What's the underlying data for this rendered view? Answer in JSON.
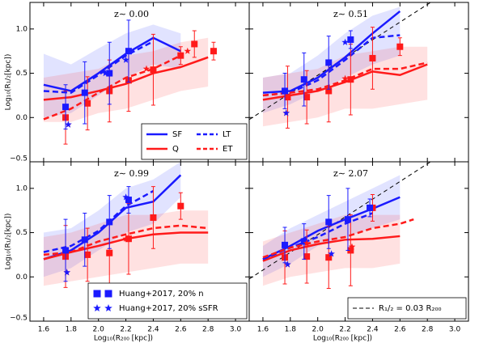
{
  "chart_data": [
    {
      "type": "line",
      "title": "z∼ 0.00",
      "xlim": [
        1.5,
        3.1
      ],
      "ylim": [
        -0.5,
        1.3
      ],
      "yticks": [
        {
          "value": -0.5,
          "label": "−0.5"
        },
        {
          "value": 0,
          "label": "0.0"
        },
        0.5,
        {
          "value": 1,
          "label": "1.0"
        }
      ],
      "ylabel": "Log₁₀(R₁/₂[kpc])",
      "legend": "lower right",
      "legend_columns": 2,
      "series": [
        {
          "kind": "band",
          "color": "#3344ff",
          "x": [
            1.6,
            1.8,
            2.0,
            2.2,
            2.4,
            2.6
          ],
          "lower": [
            0.0,
            0.05,
            0.25,
            0.45,
            0.6,
            0.55
          ],
          "upper": [
            0.72,
            0.6,
            0.78,
            0.95,
            1.05,
            0.95
          ]
        },
        {
          "kind": "band",
          "color": "#ff3333",
          "x": [
            1.6,
            1.8,
            2.0,
            2.2,
            2.4,
            2.6,
            2.8
          ],
          "lower": [
            -0.05,
            -0.05,
            0.05,
            0.1,
            0.2,
            0.3,
            0.35
          ],
          "upper": [
            0.45,
            0.5,
            0.55,
            0.7,
            0.75,
            0.85,
            0.9
          ]
        },
        {
          "name": "SF",
          "kind": "line",
          "color": "#1a1aff",
          "x": [
            1.6,
            1.8,
            2.0,
            2.2,
            2.4,
            2.6
          ],
          "values": [
            0.37,
            0.3,
            0.5,
            0.72,
            0.9,
            0.75
          ]
        },
        {
          "name": "Q",
          "kind": "line",
          "color": "#ff1a1a",
          "x": [
            1.6,
            1.8,
            2.0,
            2.2,
            2.4,
            2.6,
            2.8
          ],
          "values": [
            0.2,
            0.23,
            0.3,
            0.38,
            0.5,
            0.57,
            0.68
          ]
        },
        {
          "name": "LT",
          "kind": "dashed",
          "color": "#1a1aff",
          "x": [
            1.6,
            1.8,
            2.0,
            2.2,
            2.4
          ],
          "values": [
            0.3,
            0.28,
            0.48,
            0.7,
            0.86
          ]
        },
        {
          "name": "ET",
          "kind": "dashed",
          "color": "#ff1a1a",
          "x": [
            1.6,
            1.8,
            2.0,
            2.2,
            2.4,
            2.6
          ],
          "values": [
            -0.02,
            0.1,
            0.28,
            0.45,
            0.55,
            0.7
          ]
        },
        {
          "kind": "squares",
          "color": "#ff1a1a",
          "x": [
            1.76,
            1.92,
            2.08,
            2.22,
            2.4,
            2.6,
            2.7,
            2.84
          ],
          "values": [
            0.0,
            0.16,
            0.3,
            0.42,
            0.54,
            0.7,
            0.83,
            0.75
          ],
          "errors": [
            0.3,
            0.3,
            0.35,
            0.35,
            0.4,
            0.1,
            0.15,
            0.1
          ]
        },
        {
          "kind": "squares",
          "color": "#1a1aff",
          "x": [
            1.76,
            1.9,
            2.08,
            2.22
          ],
          "values": [
            0.12,
            0.28,
            0.5,
            0.75
          ],
          "errors": [
            0.25,
            0.35,
            0.35,
            0.35
          ]
        },
        {
          "kind": "stars",
          "color": "#ff1a1a",
          "x": [
            1.78,
            2.35,
            2.65
          ],
          "values": [
            -0.08,
            0.55,
            0.75
          ]
        },
        {
          "kind": "stars",
          "color": "#1a1aff",
          "x": [
            1.78,
            2.05,
            2.2
          ],
          "values": [
            -0.08,
            0.5,
            0.65
          ]
        }
      ]
    },
    {
      "type": "line",
      "title": "z∼ 0.51",
      "xlim": [
        1.5,
        3.1
      ],
      "ylim": [
        -0.5,
        1.3
      ],
      "series": [
        {
          "kind": "band",
          "color": "#3344ff",
          "x": [
            1.6,
            1.8,
            2.0,
            2.2,
            2.4,
            2.6
          ],
          "lower": [
            0.05,
            0.15,
            0.3,
            0.45,
            0.6,
            0.7
          ],
          "upper": [
            0.45,
            0.5,
            0.7,
            0.95,
            1.15,
            1.25
          ]
        },
        {
          "kind": "band",
          "color": "#ff3333",
          "x": [
            1.6,
            1.8,
            2.0,
            2.2,
            2.4,
            2.6,
            2.8
          ],
          "lower": [
            -0.1,
            -0.05,
            0.0,
            0.1,
            0.1,
            0.15,
            0.2
          ],
          "upper": [
            0.45,
            0.5,
            0.55,
            0.7,
            0.75,
            0.8,
            0.8
          ]
        },
        {
          "kind": "dashed",
          "color": "#000000",
          "x": [
            1.5,
            3.1
          ],
          "values": [
            -0.023,
            1.577
          ]
        },
        {
          "kind": "line",
          "color": "#1a1aff",
          "x": [
            1.6,
            1.8,
            2.0,
            2.2,
            2.4,
            2.6
          ],
          "values": [
            0.28,
            0.3,
            0.45,
            0.68,
            0.95,
            1.2
          ]
        },
        {
          "kind": "line",
          "color": "#ff1a1a",
          "x": [
            1.6,
            1.8,
            2.0,
            2.2,
            2.4,
            2.6,
            2.8
          ],
          "values": [
            0.2,
            0.25,
            0.3,
            0.4,
            0.52,
            0.48,
            0.6
          ]
        },
        {
          "kind": "dashed",
          "color": "#1a1aff",
          "x": [
            1.6,
            1.8,
            2.0,
            2.2,
            2.4,
            2.6
          ],
          "values": [
            0.25,
            0.28,
            0.42,
            0.65,
            0.9,
            0.93
          ]
        },
        {
          "kind": "dashed",
          "color": "#ff1a1a",
          "x": [
            1.6,
            1.8,
            2.0,
            2.2,
            2.4,
            2.6,
            2.8
          ],
          "values": [
            0.25,
            0.28,
            0.32,
            0.42,
            0.55,
            0.55,
            0.62
          ]
        },
        {
          "kind": "squares",
          "color": "#ff1a1a",
          "x": [
            1.78,
            1.92,
            2.08,
            2.24,
            2.4,
            2.6
          ],
          "values": [
            0.23,
            0.23,
            0.3,
            0.43,
            0.67,
            0.8
          ],
          "errors": [
            0.35,
            0.3,
            0.35,
            0.4,
            0.35,
            0.1
          ]
        },
        {
          "kind": "squares",
          "color": "#1a1aff",
          "x": [
            1.76,
            1.9,
            2.08,
            2.24
          ],
          "values": [
            0.3,
            0.43,
            0.62,
            0.88
          ],
          "errors": [
            0.2,
            0.3,
            0.3,
            0.1
          ]
        },
        {
          "kind": "stars",
          "color": "#ff1a1a",
          "x": [
            1.77,
            2.2
          ],
          "values": [
            0.05,
            0.44
          ]
        },
        {
          "kind": "stars",
          "color": "#1a1aff",
          "x": [
            1.77,
            2.2
          ],
          "values": [
            0.05,
            0.85
          ]
        }
      ]
    },
    {
      "type": "line",
      "title": "z∼ 0.99",
      "xlim": [
        1.5,
        3.1
      ],
      "ylim": [
        -0.5,
        1.3
      ],
      "xticks": [
        1.6,
        1.8,
        {
          "value": 2,
          "label": "2.0"
        },
        2.2,
        2.4,
        2.6,
        2.8,
        {
          "value": 3,
          "label": "3.0"
        }
      ],
      "yticks": [
        {
          "value": -0.5,
          "label": "−0.5"
        },
        {
          "value": 0,
          "label": "0.0"
        },
        0.5,
        {
          "value": 1,
          "label": "1.0"
        }
      ],
      "xlabel": "Log₁₀(R₂₀₀ [kpc])",
      "ylabel": "Log₁₀(R₁/₂[kpc])",
      "legend": "lower right",
      "legend_columns": 1,
      "series": [
        {
          "kind": "band",
          "color": "#3344ff",
          "x": [
            1.6,
            1.8,
            2.0,
            2.2,
            2.4,
            2.6
          ],
          "lower": [
            0.0,
            0.1,
            0.3,
            0.5,
            0.6,
            0.9
          ],
          "upper": [
            0.5,
            0.55,
            0.75,
            1.0,
            1.1,
            1.3
          ]
        },
        {
          "kind": "band",
          "color": "#ff3333",
          "x": [
            1.6,
            1.8,
            2.0,
            2.2,
            2.4,
            2.6,
            2.8
          ],
          "lower": [
            -0.1,
            -0.05,
            0.0,
            0.05,
            0.1,
            0.15,
            0.15
          ],
          "upper": [
            0.45,
            0.5,
            0.6,
            0.7,
            0.7,
            0.75,
            0.75
          ]
        },
        {
          "kind": "line",
          "color": "#1a1aff",
          "x": [
            1.6,
            1.8,
            2.0,
            2.2,
            2.4,
            2.6
          ],
          "values": [
            0.2,
            0.3,
            0.5,
            0.78,
            0.85,
            1.15
          ]
        },
        {
          "kind": "line",
          "color": "#ff1a1a",
          "x": [
            1.6,
            1.8,
            2.0,
            2.2,
            2.4,
            2.6,
            2.8
          ],
          "values": [
            0.2,
            0.28,
            0.35,
            0.43,
            0.48,
            0.5,
            0.5
          ]
        },
        {
          "kind": "dashed",
          "color": "#1a1aff",
          "x": [
            1.6,
            1.8,
            2.0,
            2.2,
            2.4
          ],
          "values": [
            0.28,
            0.35,
            0.52,
            0.8,
            0.97
          ]
        },
        {
          "kind": "dashed",
          "color": "#ff1a1a",
          "x": [
            1.6,
            1.8,
            2.0,
            2.2,
            2.4,
            2.6,
            2.8
          ],
          "values": [
            0.25,
            0.28,
            0.4,
            0.48,
            0.55,
            0.58,
            0.55
          ]
        },
        {
          "kind": "squares",
          "color": "#ff1a1a",
          "x": [
            1.76,
            1.92,
            2.08,
            2.22,
            2.4,
            2.6
          ],
          "values": [
            0.23,
            0.25,
            0.27,
            0.43,
            0.67,
            0.8
          ],
          "errors": [
            0.35,
            0.3,
            0.35,
            0.4,
            0.35,
            0.15
          ]
        },
        {
          "name": "Huang+2017, 20% n",
          "kind": "squares",
          "color": "#1a1aff",
          "x": [
            1.76,
            1.9,
            2.08,
            2.22
          ],
          "values": [
            0.3,
            0.42,
            0.62,
            0.87
          ],
          "errors": [
            0.35,
            0.3,
            0.3,
            0.15
          ]
        },
        {
          "kind": "stars",
          "color": "#ff1a1a",
          "x": [
            1.77,
            2.2
          ],
          "values": [
            0.05,
            0.43
          ]
        },
        {
          "name": "Huang+2017, 20% sSFR",
          "kind": "stars",
          "color": "#1a1aff",
          "x": [
            1.77,
            2.2
          ],
          "values": [
            0.05,
            0.9
          ]
        }
      ]
    },
    {
      "type": "line",
      "title": "z∼ 2.07",
      "xlim": [
        1.5,
        3.1
      ],
      "ylim": [
        -0.5,
        1.3
      ],
      "xticks": [
        1.6,
        1.8,
        {
          "value": 2,
          "label": "2.0"
        },
        2.2,
        2.4,
        2.6,
        2.8,
        {
          "value": 3,
          "label": "3.0"
        }
      ],
      "xlabel": "Log₁₀(R₂₀₀ [kpc])",
      "legend": "lower right",
      "legend_columns": 1,
      "series": [
        {
          "kind": "band",
          "color": "#3344ff",
          "x": [
            1.6,
            1.8,
            2.0,
            2.2,
            2.4,
            2.6
          ],
          "lower": [
            0.0,
            0.15,
            0.35,
            0.45,
            0.55,
            0.65
          ],
          "upper": [
            0.35,
            0.55,
            0.7,
            0.85,
            1.0,
            1.15
          ]
        },
        {
          "kind": "band",
          "color": "#ff3333",
          "x": [
            1.6,
            1.8,
            2.0,
            2.2,
            2.4,
            2.6
          ],
          "lower": [
            -0.1,
            0.0,
            0.05,
            0.1,
            0.1,
            0.15
          ],
          "upper": [
            0.4,
            0.5,
            0.6,
            0.7,
            0.7,
            0.7
          ]
        },
        {
          "name": "R₁/₂ = 0.03 R₂₀₀",
          "kind": "dashed",
          "color": "#000000",
          "x": [
            1.5,
            3.1
          ],
          "values": [
            -0.023,
            1.577
          ]
        },
        {
          "kind": "line",
          "color": "#1a1aff",
          "x": [
            1.6,
            1.8,
            2.0,
            2.2,
            2.4,
            2.6
          ],
          "values": [
            0.2,
            0.35,
            0.52,
            0.65,
            0.77,
            0.9
          ]
        },
        {
          "kind": "line",
          "color": "#ff1a1a",
          "x": [
            1.6,
            1.8,
            2.0,
            2.2,
            2.4,
            2.6
          ],
          "values": [
            0.18,
            0.3,
            0.37,
            0.42,
            0.43,
            0.46
          ]
        },
        {
          "kind": "dashed",
          "color": "#1a1aff",
          "x": [
            1.6,
            1.8,
            2.0,
            2.2,
            2.4
          ],
          "values": [
            0.2,
            0.33,
            0.45,
            0.6,
            0.72
          ]
        },
        {
          "kind": "dashed",
          "color": "#ff1a1a",
          "x": [
            1.6,
            1.8,
            2.0,
            2.2,
            2.4,
            2.6,
            2.7
          ],
          "values": [
            0.22,
            0.33,
            0.4,
            0.45,
            0.55,
            0.6,
            0.65
          ]
        },
        {
          "kind": "squares",
          "color": "#ff1a1a",
          "x": [
            1.76,
            1.92,
            2.08,
            2.24,
            2.4
          ],
          "values": [
            0.22,
            0.23,
            0.22,
            0.3,
            0.78
          ],
          "errors": [
            0.3,
            0.3,
            0.35,
            0.4,
            0.15
          ]
        },
        {
          "kind": "squares",
          "color": "#1a1aff",
          "x": [
            1.76,
            1.9,
            2.08,
            2.22,
            2.38
          ],
          "values": [
            0.36,
            0.4,
            0.62,
            0.65,
            0.78
          ],
          "errors": [
            0.2,
            0.2,
            0.3,
            0.35,
            0.1
          ]
        },
        {
          "kind": "stars",
          "color": "#ff1a1a",
          "x": [
            1.78,
            1.92,
            2.25
          ],
          "values": [
            0.14,
            0.38,
            0.34
          ]
        },
        {
          "kind": "stars",
          "color": "#1a1aff",
          "x": [
            1.78,
            2.1
          ],
          "values": [
            0.14,
            0.26
          ]
        }
      ]
    }
  ]
}
